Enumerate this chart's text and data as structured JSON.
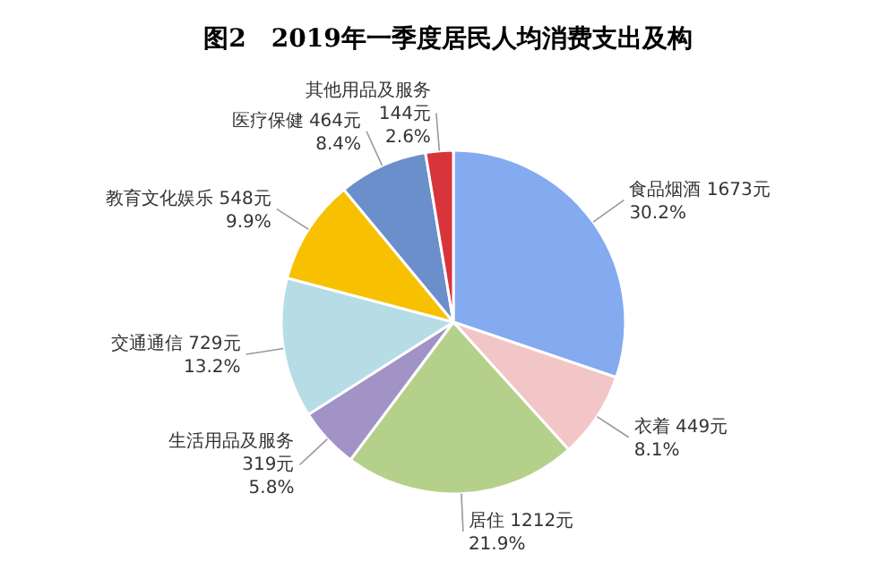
{
  "chart_data": {
    "type": "pie",
    "title": "图2　2019年一季度居民人均消费支出及构",
    "categories": [
      "食品烟酒",
      "衣着",
      "居住",
      "生活用品及服务",
      "交通通信",
      "教育文化娱乐",
      "医疗保健",
      "其他用品及服务"
    ],
    "values": [
      1673,
      449,
      1212,
      319,
      729,
      548,
      464,
      144
    ],
    "value_labels": [
      "1673元\n30.2%",
      "449元\n8.1%",
      "1212元\n21.9%",
      "319元\n5.8%",
      "729元\n13.2%",
      "548元\n9.9%",
      "464元\n8.4%",
      "144元\n2.6%"
    ],
    "colors": [
      "#84aaf0",
      "#f2c6c6",
      "#b5d08a",
      "#a293c6",
      "#b6dce6",
      "#f7c102",
      "#6a8fca",
      "#d8343c"
    ]
  }
}
